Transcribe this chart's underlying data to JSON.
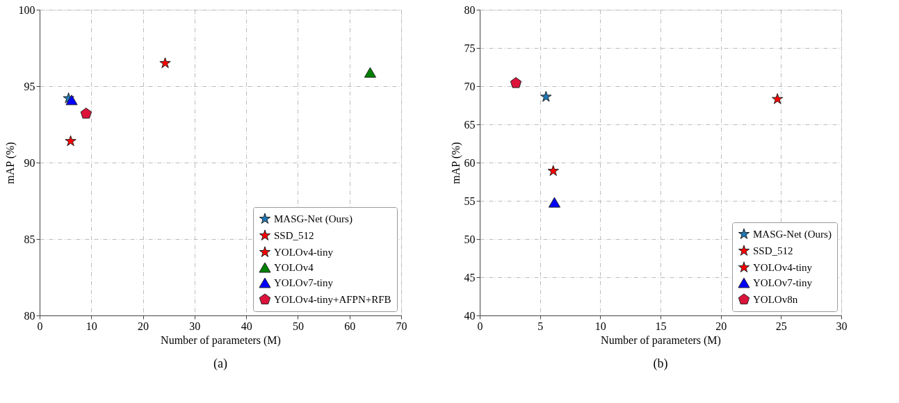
{
  "chart_data": [
    {
      "type": "scatter",
      "xlabel": "Number of parameters (M)",
      "ylabel": "mAP (%)",
      "xlim": [
        0,
        70
      ],
      "xticks": [
        0,
        10,
        20,
        30,
        40,
        50,
        60,
        70
      ],
      "ylim": [
        80,
        100
      ],
      "yticks": [
        80,
        85,
        90,
        95,
        100
      ],
      "grid": true,
      "legend": "bottom right",
      "annotations": [
        "(a)"
      ],
      "series": [
        {
          "name": "MASG-Net (Ours)",
          "color": "#1f77b4",
          "marker": "star",
          "x": [
            5.6
          ],
          "values": [
            94.2
          ]
        },
        {
          "name": "SSD_512",
          "color": "#ff0000",
          "marker": "star",
          "x": [
            24.3
          ],
          "values": [
            96.5
          ]
        },
        {
          "name": "YOLOv4-tiny",
          "color": "#ff0000",
          "marker": "star",
          "x": [
            6.0
          ],
          "values": [
            91.4
          ]
        },
        {
          "name": "YOLOv4",
          "color": "#008000",
          "marker": "triangle",
          "x": [
            64.0
          ],
          "values": [
            95.9
          ]
        },
        {
          "name": "YOLOv7-tiny",
          "color": "#0000ff",
          "marker": "triangle",
          "x": [
            6.2
          ],
          "values": [
            94.1
          ]
        },
        {
          "name": "YOLOv4-tiny+AFPN+RFB",
          "color": "#dc143c",
          "x": [
            9.0
          ],
          "values": [
            93.2
          ]
        }
      ]
    },
    {
      "type": "scatter",
      "xlabel": "Number of parameters (M)",
      "ylabel": "mAP (%)",
      "xlim": [
        0,
        30
      ],
      "xticks": [
        0,
        5,
        10,
        15,
        20,
        25,
        30
      ],
      "ylim": [
        40,
        80
      ],
      "yticks": [
        40,
        45,
        50,
        55,
        60,
        65,
        70,
        75,
        80
      ],
      "grid": true,
      "legend": "bottom right",
      "annotations": [
        "(b)"
      ],
      "series": [
        {
          "name": "MASG-Net (Ours)",
          "color": "#1f77b4",
          "marker": "star",
          "x": [
            5.5
          ],
          "values": [
            68.6
          ]
        },
        {
          "name": "SSD_512",
          "color": "#ff0000",
          "marker": "star",
          "x": [
            24.7
          ],
          "values": [
            68.3
          ]
        },
        {
          "name": "YOLOv4-tiny",
          "color": "#ff0000",
          "marker": "star",
          "x": [
            6.1
          ],
          "values": [
            58.9
          ]
        },
        {
          "name": "YOLOv7-tiny",
          "color": "#0000ff",
          "marker": "triangle",
          "x": [
            6.2
          ],
          "values": [
            54.8
          ]
        },
        {
          "name": "YOLOv8n",
          "color": "#dc143c",
          "x": [
            3.0
          ],
          "values": [
            70.4
          ]
        }
      ]
    }
  ]
}
